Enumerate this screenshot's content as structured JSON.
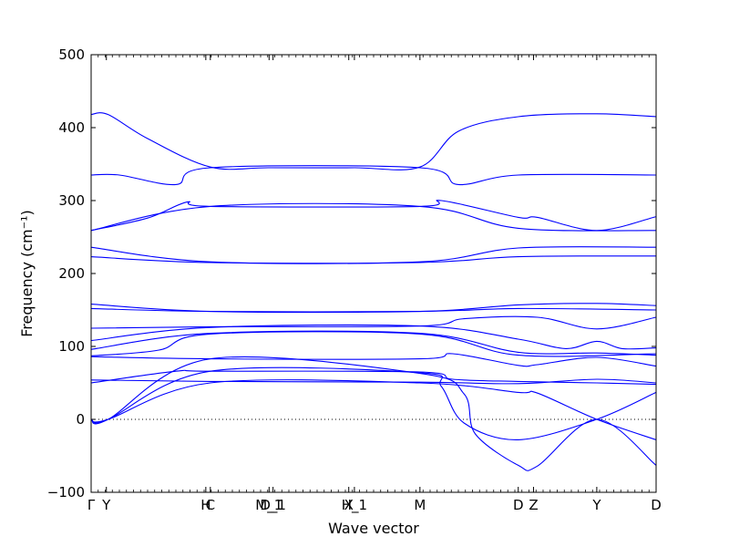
{
  "chart_data": {
    "type": "line",
    "xlabel": "Wave vector",
    "ylabel": "Frequency (cm⁻¹)",
    "ylim": [
      -100,
      500
    ],
    "yticks": [
      -100,
      0,
      100,
      200,
      300,
      400,
      500
    ],
    "xlim": [
      0,
      1
    ],
    "xticks": [
      {
        "label": "Γ",
        "x": 0.0
      },
      {
        "label": "Y",
        "x": 0.027
      },
      {
        "label": "H",
        "x": 0.203
      },
      {
        "label": "C",
        "x": 0.211
      },
      {
        "label": "M_1",
        "x": 0.315
      },
      {
        "label": "D_1",
        "x": 0.322
      },
      {
        "label": "X",
        "x": 0.456
      },
      {
        "label": "H_1",
        "x": 0.466
      },
      {
        "label": "M",
        "x": 0.582
      },
      {
        "label": "D",
        "x": 0.756
      },
      {
        "label": "Z",
        "x": 0.783
      },
      {
        "label": "Y",
        "x": 0.895
      },
      {
        "label": "D",
        "x": 1.0
      }
    ],
    "zero_line": {
      "y": 0,
      "style": "dotted"
    },
    "grid": false,
    "line_color": "#0000ff",
    "series": [
      {
        "points": [
          [
            0,
            418
          ],
          [
            0.03,
            418
          ],
          [
            0.1,
            385
          ],
          [
            0.211,
            346
          ],
          [
            0.315,
            345
          ],
          [
            0.466,
            345
          ],
          [
            0.582,
            346
          ],
          [
            0.65,
            395
          ],
          [
            0.756,
            415
          ],
          [
            0.895,
            419
          ],
          [
            1.0,
            415
          ]
        ]
      },
      {
        "points": [
          [
            0,
            335
          ],
          [
            0.05,
            335
          ],
          [
            0.15,
            322
          ],
          [
            0.211,
            345
          ],
          [
            0.582,
            345
          ],
          [
            0.65,
            322
          ],
          [
            0.756,
            335
          ],
          [
            1.0,
            335
          ]
        ]
      },
      {
        "points": [
          [
            0,
            259
          ],
          [
            0.1,
            276
          ],
          [
            0.17,
            298
          ],
          [
            0.211,
            292
          ],
          [
            0.582,
            292
          ],
          [
            0.62,
            300
          ],
          [
            0.756,
            277
          ],
          [
            0.79,
            277
          ],
          [
            0.895,
            259
          ],
          [
            1.0,
            278
          ]
        ]
      },
      {
        "points": [
          [
            0,
            259
          ],
          [
            0.211,
            292
          ],
          [
            0.582,
            292
          ],
          [
            0.756,
            262
          ],
          [
            1.0,
            259
          ]
        ]
      },
      {
        "points": [
          [
            0,
            236
          ],
          [
            0.211,
            216
          ],
          [
            0.582,
            216
          ],
          [
            0.756,
            235
          ],
          [
            1.0,
            236
          ]
        ]
      },
      {
        "points": [
          [
            0,
            223
          ],
          [
            0.211,
            215
          ],
          [
            0.582,
            215
          ],
          [
            0.756,
            223
          ],
          [
            1.0,
            224
          ]
        ]
      },
      {
        "points": [
          [
            0,
            158
          ],
          [
            0.211,
            148
          ],
          [
            0.582,
            148
          ],
          [
            0.756,
            157
          ],
          [
            0.895,
            159
          ],
          [
            1.0,
            156
          ]
        ]
      },
      {
        "points": [
          [
            0,
            152
          ],
          [
            0.211,
            148
          ],
          [
            0.582,
            148
          ],
          [
            0.756,
            152
          ],
          [
            1.0,
            150
          ]
        ]
      },
      {
        "points": [
          [
            0,
            125
          ],
          [
            0.211,
            127
          ],
          [
            0.582,
            128
          ],
          [
            0.66,
            138
          ],
          [
            0.79,
            140
          ],
          [
            0.895,
            124
          ],
          [
            1.0,
            140
          ]
        ]
      },
      {
        "points": [
          [
            0,
            108
          ],
          [
            0.211,
            126
          ],
          [
            0.582,
            128
          ],
          [
            0.756,
            110
          ],
          [
            0.84,
            97
          ],
          [
            0.895,
            107
          ],
          [
            0.94,
            97
          ],
          [
            1.0,
            98
          ]
        ]
      },
      {
        "points": [
          [
            0,
            96
          ],
          [
            0.211,
            118
          ],
          [
            0.582,
            118
          ],
          [
            0.756,
            92
          ],
          [
            0.895,
            91
          ],
          [
            1.0,
            88
          ]
        ]
      },
      {
        "points": [
          [
            0,
            87
          ],
          [
            0.12,
            95
          ],
          [
            0.211,
            117
          ],
          [
            0.582,
            117
          ],
          [
            0.756,
            88
          ],
          [
            1.0,
            90
          ]
        ]
      },
      {
        "points": [
          [
            0,
            86
          ],
          [
            0.211,
            83
          ],
          [
            0.582,
            83
          ],
          [
            0.64,
            90
          ],
          [
            0.756,
            74
          ],
          [
            0.79,
            75
          ],
          [
            0.895,
            85
          ],
          [
            1.0,
            73
          ]
        ]
      },
      {
        "points": [
          [
            0,
            54
          ],
          [
            0.211,
            52
          ],
          [
            0.582,
            51
          ],
          [
            0.756,
            49
          ],
          [
            0.895,
            55
          ],
          [
            1.0,
            50
          ]
        ]
      },
      {
        "points": [
          [
            0,
            50
          ],
          [
            0.15,
            66
          ],
          [
            0.211,
            66
          ],
          [
            0.582,
            65
          ],
          [
            0.64,
            55
          ],
          [
            0.756,
            52
          ],
          [
            0.895,
            50
          ],
          [
            1.0,
            48
          ]
        ]
      },
      {
        "points": [
          [
            0,
            0
          ],
          [
            0.03,
            0
          ],
          [
            0.211,
            50
          ],
          [
            0.582,
            50
          ],
          [
            0.756,
            37
          ],
          [
            0.79,
            36
          ],
          [
            0.895,
            0
          ],
          [
            1.0,
            -28
          ]
        ]
      },
      {
        "points": [
          [
            0,
            0
          ],
          [
            0.03,
            0
          ],
          [
            0.211,
            66
          ],
          [
            0.582,
            64
          ],
          [
            0.62,
            45
          ],
          [
            0.66,
            -5
          ],
          [
            0.756,
            -28
          ],
          [
            0.895,
            0
          ],
          [
            1.0,
            37
          ]
        ]
      },
      {
        "points": [
          [
            0,
            0
          ],
          [
            0.03,
            0
          ],
          [
            0.211,
            83
          ],
          [
            0.582,
            63
          ],
          [
            0.66,
            35
          ],
          [
            0.68,
            -20
          ],
          [
            0.756,
            -63
          ],
          [
            0.79,
            -64
          ],
          [
            0.895,
            0
          ],
          [
            1.0,
            -63
          ]
        ]
      }
    ]
  }
}
